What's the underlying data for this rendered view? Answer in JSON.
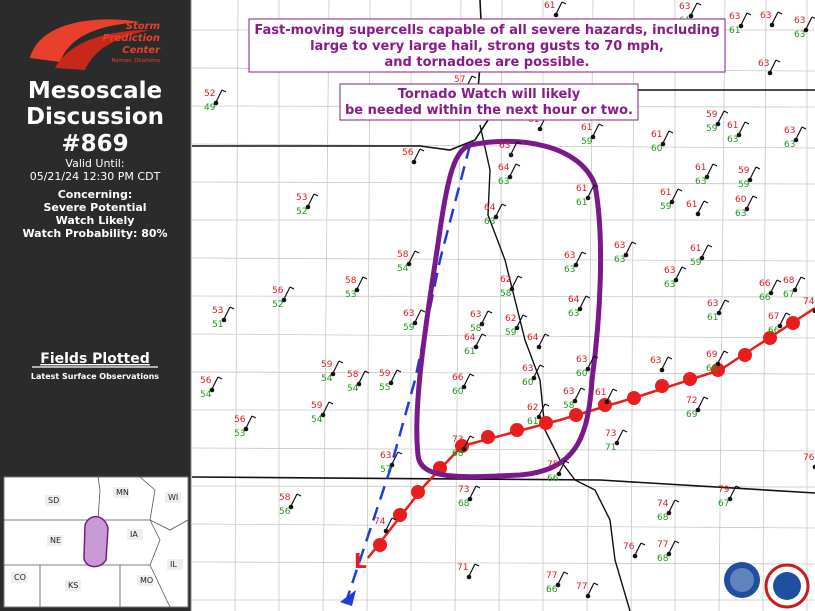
{
  "sidebar": {
    "logo": [
      "Storm",
      "Prediction",
      "Center",
      "Norman, Oklahoma"
    ],
    "title": [
      "Mesoscale",
      "Discussion"
    ],
    "number": "#869",
    "valid_label": "Valid Until:",
    "valid_until": "05/21/24 12:30 PM CDT",
    "concerning_label": "Concerning:",
    "concerning": [
      "Severe Potential",
      "Watch Likely"
    ],
    "watch_probability": "Watch Probability: 80%",
    "fields_heading": "Fields Plotted",
    "fields": "Latest Surface Observations"
  },
  "inset": {
    "states": [
      "SD",
      "MN",
      "WI",
      "NE",
      "IA",
      "IL",
      "CO",
      "KS",
      "MO"
    ]
  },
  "map": {
    "headline": [
      "Fast-moving supercells capable of all severe hazards, including",
      "large to very large hail, strong gusts to 70 mph,",
      "and tornadoes are possible."
    ],
    "note": [
      "Tornado Watch will likely",
      "be needed within the next hour or two."
    ],
    "low_label": "L",
    "stations": [
      {
        "temp": 53,
        "dew": 51
      },
      {
        "temp": 56,
        "dew": 52
      },
      {
        "temp": 58,
        "dew": 53
      },
      {
        "temp": 58,
        "dew": 54
      },
      {
        "temp": 63,
        "dew": 59
      },
      {
        "temp": 59,
        "dew": 54
      },
      {
        "temp": 58,
        "dew": 54
      },
      {
        "temp": 59,
        "dew": 55
      },
      {
        "temp": 59,
        "dew": 54
      },
      {
        "temp": 56,
        "dew": 53
      },
      {
        "temp": 56,
        "dew": 54
      },
      {
        "temp": 53,
        "dew": 52
      },
      {
        "temp": 52,
        "dew": 49
      },
      {
        "temp": 56,
        "dew": null
      },
      {
        "temp": 66,
        "dew": 60
      },
      {
        "temp": 64,
        "dew": 61
      },
      {
        "temp": 63,
        "dew": 58
      },
      {
        "temp": 73,
        "dew": 68
      },
      {
        "temp": 63,
        "dew": null
      },
      {
        "temp": 64,
        "dew": 63
      },
      {
        "temp": 64,
        "dew": 63
      },
      {
        "temp": 62,
        "dew": 58
      },
      {
        "temp": 62,
        "dew": 59
      },
      {
        "temp": 64,
        "dew": null
      },
      {
        "temp": 63,
        "dew": 60
      },
      {
        "temp": 62,
        "dew": 61
      },
      {
        "temp": 63,
        "dew": 58
      },
      {
        "temp": 63,
        "dew": 60
      },
      {
        "temp": 64,
        "dew": 63
      },
      {
        "temp": 63,
        "dew": 63
      },
      {
        "temp": 61,
        "dew": 61
      },
      {
        "temp": 61,
        "dew": 59
      },
      {
        "temp": 61,
        "dew": null
      },
      {
        "temp": 63,
        "dew": 63
      },
      {
        "temp": 61,
        "dew": null
      },
      {
        "temp": 73,
        "dew": 71
      },
      {
        "temp": 75,
        "dew": 66
      },
      {
        "temp": 73,
        "dew": 68
      },
      {
        "temp": 74,
        "dew": null
      },
      {
        "temp": 63,
        "dew": 57
      },
      {
        "temp": 58,
        "dew": 56
      },
      {
        "temp": 71,
        "dew": null
      },
      {
        "temp": 77,
        "dew": 66
      },
      {
        "temp": 77,
        "dew": null
      },
      {
        "temp": 76,
        "dew": null
      },
      {
        "temp": 77,
        "dew": 68
      },
      {
        "temp": 74,
        "dew": 68
      },
      {
        "temp": 79,
        "dew": 67
      },
      {
        "temp": 72,
        "dew": 69
      },
      {
        "temp": 69,
        "dew": 68
      },
      {
        "temp": 63,
        "dew": null
      },
      {
        "temp": 63,
        "dew": 63
      },
      {
        "temp": 63,
        "dew": 61
      },
      {
        "temp": 61,
        "dew": 59
      },
      {
        "temp": 61,
        "dew": 63
      },
      {
        "temp": 59,
        "dew": 59
      },
      {
        "temp": 60,
        "dew": 63
      },
      {
        "temp": 61,
        "dew": 59
      },
      {
        "temp": 61,
        "dew": null
      },
      {
        "temp": 61,
        "dew": 60
      },
      {
        "temp": 59,
        "dew": 59
      },
      {
        "temp": 61,
        "dew": 63
      },
      {
        "temp": 63,
        "dew": 63
      },
      {
        "temp": 66,
        "dew": 66
      },
      {
        "temp": 68,
        "dew": 67
      },
      {
        "temp": 67,
        "dew": 66
      },
      {
        "temp": 74,
        "dew": null
      },
      {
        "temp": 63,
        "dew": 61
      },
      {
        "temp": 63,
        "dew": null
      },
      {
        "temp": 63,
        "dew": 63
      },
      {
        "temp": 63,
        "dew": null
      },
      {
        "temp": 63,
        "dew": 61
      },
      {
        "temp": 61,
        "dew": null
      },
      {
        "temp": 57,
        "dew": null
      },
      {
        "temp": 76,
        "dew": null
      }
    ]
  }
}
